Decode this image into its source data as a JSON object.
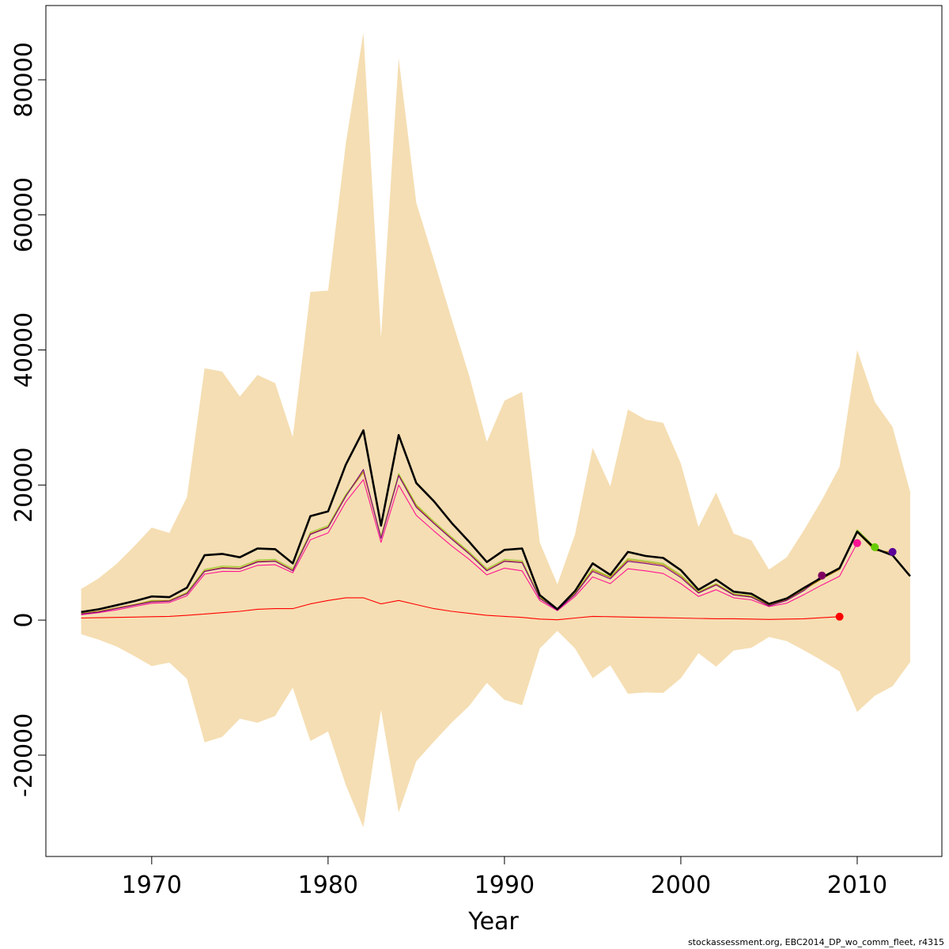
{
  "chart_data": {
    "type": "line",
    "title": "",
    "xlabel": "Year",
    "ylabel": "",
    "xlim": [
      1964,
      2014.8
    ],
    "ylim": [
      -35000,
      91000
    ],
    "xticks": [
      1970,
      1980,
      1990,
      2000,
      2010
    ],
    "xtick_labels": [
      "1970",
      "1980",
      "1990",
      "2000",
      "2010"
    ],
    "yticks": [
      -20000,
      0,
      20000,
      40000,
      60000,
      80000
    ],
    "ytick_labels": [
      "-20000",
      "0",
      "20000",
      "40000",
      "60000",
      "80000"
    ],
    "grid": false,
    "legend": "none",
    "colors": {
      "band": "#f5deb3",
      "main_line": "#000000",
      "red_line": "#ff0000"
    },
    "band": {
      "x": [
        1966,
        1967,
        1968,
        1969,
        1970,
        1971,
        1972,
        1973,
        1974,
        1975,
        1976,
        1977,
        1978,
        1979,
        1980,
        1981,
        1982,
        1983,
        1984,
        1985,
        1986,
        1987,
        1988,
        1989,
        1990,
        1991,
        1992,
        1993,
        1994,
        1995,
        1996,
        1997,
        1998,
        1999,
        2000,
        2001,
        2002,
        2003,
        2004,
        2005,
        2006,
        2007,
        2008,
        2009,
        2010,
        2011,
        2012,
        2013
      ],
      "upper": [
        4600,
        6200,
        8300,
        10900,
        13700,
        12900,
        18200,
        37300,
        36800,
        33100,
        36300,
        35100,
        27100,
        48600,
        48800,
        70500,
        87000,
        41800,
        83200,
        61800,
        53300,
        44600,
        36200,
        26400,
        32500,
        33800,
        11500,
        5300,
        12700,
        25500,
        19800,
        31200,
        29700,
        29200,
        23200,
        13800,
        18900,
        12800,
        11800,
        7500,
        9300,
        13400,
        17800,
        22700,
        40000,
        32300,
        28600,
        19000
      ],
      "lower": [
        -2100,
        -2900,
        -3900,
        -5300,
        -6800,
        -6300,
        -8700,
        -18100,
        -17300,
        -14600,
        -15200,
        -14200,
        -10000,
        -17900,
        -16500,
        -24400,
        -30700,
        -13300,
        -28500,
        -20900,
        -18000,
        -15200,
        -12700,
        -9300,
        -11800,
        -12600,
        -4200,
        -1600,
        -4200,
        -8600,
        -6700,
        -10900,
        -10700,
        -10800,
        -8600,
        -4900,
        -6900,
        -4500,
        -4100,
        -2500,
        -3100,
        -4500,
        -6000,
        -7600,
        -13600,
        -11200,
        -9800,
        -6200
      ]
    },
    "series": [
      {
        "color": "#000000",
        "x": [
          1966,
          1967,
          1968,
          1969,
          1970,
          1971,
          1972,
          1973,
          1974,
          1975,
          1976,
          1977,
          1978,
          1979,
          1980,
          1981,
          1982,
          1983,
          1984,
          1985,
          1986,
          1987,
          1988,
          1989,
          1990,
          1991,
          1992,
          1993,
          1994,
          1995,
          1996,
          1997,
          1998,
          1999,
          2000,
          2001,
          2002,
          2003,
          2004,
          2005,
          2006,
          2007,
          2008,
          2009,
          2010,
          2011,
          2012,
          2013
        ],
        "values": [
          1200,
          1600,
          2200,
          2800,
          3500,
          3400,
          4800,
          9600,
          9800,
          9300,
          10600,
          10500,
          8400,
          15400,
          16100,
          23000,
          28100,
          14000,
          27400,
          20300,
          17600,
          14400,
          11600,
          8600,
          10400,
          10600,
          3700,
          1600,
          4300,
          8400,
          6700,
          10100,
          9500,
          9200,
          7400,
          4500,
          6000,
          4200,
          3900,
          2400,
          3200,
          4800,
          6300,
          7700,
          13100,
          10600,
          9600,
          6500
        ]
      },
      {
        "color": "#9acd32",
        "x": [
          1966,
          1967,
          1968,
          1969,
          1970,
          1971,
          1972,
          1973,
          1974,
          1975,
          1976,
          1977,
          1978,
          1979,
          1980,
          1981,
          1982,
          1983,
          1984,
          1985,
          1986,
          1987,
          1988,
          1989,
          1990,
          1991,
          1992,
          1993,
          1994,
          1995,
          1996,
          1997,
          1998,
          1999,
          2000,
          2001,
          2002,
          2003,
          2004,
          2005,
          2006,
          2007,
          2008,
          2009,
          2010,
          2011
        ],
        "values": [
          1000,
          1300,
          1800,
          2300,
          2900,
          2900,
          4100,
          7500,
          8000,
          7900,
          8900,
          9000,
          7600,
          13000,
          14000,
          18600,
          22100,
          12400,
          21700,
          17100,
          14600,
          12300,
          10100,
          7600,
          9000,
          8800,
          3400,
          1500,
          4000,
          7600,
          6400,
          9100,
          8800,
          8400,
          6700,
          4200,
          5400,
          3900,
          3600,
          2200,
          3000,
          4600,
          6200,
          7600,
          13400,
          10800
        ]
      },
      {
        "color": "#b8860b",
        "x": [
          1966,
          1967,
          1968,
          1969,
          1970,
          1971,
          1972,
          1973,
          1974,
          1975,
          1976,
          1977,
          1978,
          1979,
          1980,
          1981,
          1982,
          1983,
          1984,
          1985,
          1986,
          1987,
          1988,
          1989,
          1990,
          1991,
          1992,
          1993,
          1994,
          1995,
          1996,
          1997,
          1998,
          1999,
          2000,
          2001,
          2002,
          2003,
          2004,
          2005,
          2006,
          2007,
          2008,
          2009,
          2010,
          2011,
          2012
        ],
        "values": [
          1000,
          1300,
          1800,
          2300,
          2800,
          2900,
          4000,
          7300,
          7800,
          7700,
          8700,
          8800,
          7400,
          12800,
          13800,
          18400,
          21900,
          12200,
          21500,
          16900,
          14400,
          12100,
          9900,
          7400,
          8800,
          8600,
          3300,
          1500,
          3900,
          7400,
          6300,
          8900,
          8600,
          8200,
          6500,
          4100,
          5300,
          3800,
          3500,
          2200,
          3000,
          4500,
          6100,
          7500,
          13000,
          10300,
          10100
        ]
      },
      {
        "color": "#ff1493",
        "x": [
          1966,
          1967,
          1968,
          1969,
          1970,
          1971,
          1972,
          1973,
          1974,
          1975,
          1976,
          1977,
          1978,
          1979,
          1980,
          1981,
          1982,
          1983,
          1984,
          1985,
          1986,
          1987,
          1988,
          1989,
          1990,
          1991,
          1992,
          1993,
          1994,
          1995,
          1996,
          1997,
          1998,
          1999,
          2000,
          2001,
          2002,
          2003,
          2004,
          2005,
          2006,
          2007,
          2008,
          2009,
          2010
        ],
        "values": [
          800,
          1100,
          1500,
          2000,
          2500,
          2600,
          3600,
          6800,
          7200,
          7200,
          8100,
          8200,
          7000,
          11900,
          12900,
          17500,
          20800,
          11500,
          20000,
          15500,
          13200,
          11000,
          9000,
          6700,
          7700,
          7300,
          2900,
          1400,
          3500,
          6400,
          5400,
          7600,
          7300,
          6900,
          5400,
          3500,
          4500,
          3300,
          3000,
          2000,
          2500,
          3800,
          5200,
          6500,
          11400
        ]
      },
      {
        "color": "#800080",
        "x": [
          1966,
          1967,
          1968,
          1969,
          1970,
          1971,
          1972,
          1973,
          1974,
          1975,
          1976,
          1977,
          1978,
          1979,
          1980,
          1981,
          1982,
          1983,
          1984,
          1985,
          1986,
          1987,
          1988,
          1989,
          1990,
          1991,
          1992,
          1993,
          1994,
          1995,
          1996,
          1997,
          1998,
          1999,
          2000,
          2001,
          2002,
          2003,
          2004,
          2005,
          2006,
          2007,
          2008
        ],
        "values": [
          900,
          1200,
          1700,
          2200,
          2700,
          2800,
          3900,
          7200,
          7700,
          7600,
          8600,
          8700,
          7300,
          12700,
          13700,
          18300,
          22300,
          12100,
          21400,
          16700,
          14300,
          12000,
          9800,
          7300,
          8700,
          8500,
          3200,
          1500,
          3800,
          7200,
          6100,
          8700,
          8400,
          8000,
          6300,
          4000,
          5200,
          3700,
          3400,
          2100,
          2900,
          4400,
          6600
        ]
      },
      {
        "color": "#ff0000",
        "x": [
          1966,
          1967,
          1968,
          1969,
          1970,
          1971,
          1972,
          1973,
          1974,
          1975,
          1976,
          1977,
          1978,
          1979,
          1980,
          1981,
          1982,
          1983,
          1984,
          1985,
          1986,
          1987,
          1988,
          1989,
          1990,
          1991,
          1992,
          1993,
          1994,
          1995,
          1996,
          1997,
          1998,
          1999,
          2000,
          2001,
          2002,
          2003,
          2004,
          2005,
          2006,
          2007,
          2008,
          2009
        ],
        "values": [
          300,
          350,
          400,
          450,
          500,
          550,
          700,
          900,
          1100,
          1300,
          1600,
          1700,
          1700,
          2400,
          2900,
          3300,
          3300,
          2400,
          2900,
          2300,
          1700,
          1300,
          1000,
          700,
          550,
          400,
          150,
          50,
          300,
          550,
          500,
          450,
          400,
          350,
          300,
          250,
          200,
          200,
          150,
          100,
          150,
          200,
          350,
          500
        ]
      }
    ],
    "endpoints": [
      {
        "x": 2008,
        "y": 6600,
        "color": "#800060"
      },
      {
        "x": 2009,
        "y": 500,
        "color": "#ff0000"
      },
      {
        "x": 2010,
        "y": 11400,
        "color": "#ff1493"
      },
      {
        "x": 2011,
        "y": 10800,
        "color": "#66cd00"
      },
      {
        "x": 2012,
        "y": 10100,
        "color": "#5c0099"
      }
    ]
  },
  "footer": "stockassessment.org, EBC2014_DP_wo_comm_fleet, r4315"
}
